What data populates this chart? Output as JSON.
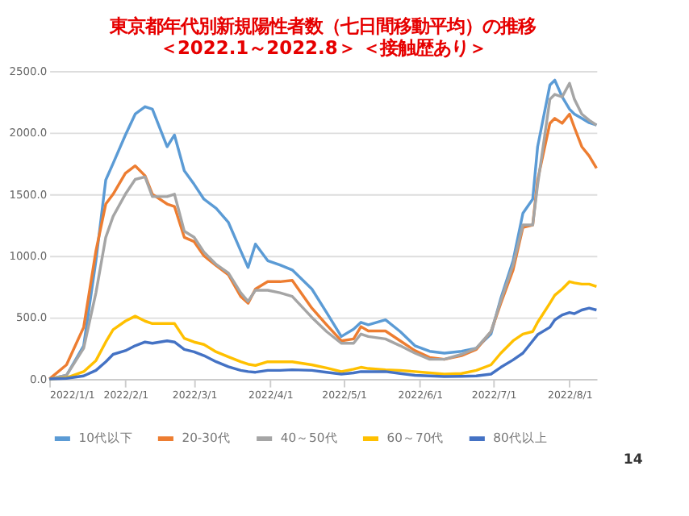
{
  "chart_data": {
    "type": "line",
    "title": [
      "東京都年代別新規陽性者数（七日間移動平均）の推移",
      "＜2022.1～2022.8＞ ＜接触歴あり＞"
    ],
    "x": [
      "2022-01-01",
      "2022-01-08",
      "2022-01-15",
      "2022-01-20",
      "2022-01-24",
      "2022-01-27",
      "2022-02-01",
      "2022-02-05",
      "2022-02-09",
      "2022-02-12",
      "2022-02-18",
      "2022-02-21",
      "2022-02-25",
      "2022-03-01",
      "2022-03-05",
      "2022-03-10",
      "2022-03-15",
      "2022-03-20",
      "2022-03-23",
      "2022-03-26",
      "2022-03-31",
      "2022-04-05",
      "2022-04-10",
      "2022-04-18",
      "2022-04-24",
      "2022-04-30",
      "2022-05-05",
      "2022-05-08",
      "2022-05-11",
      "2022-05-18",
      "2022-05-24",
      "2022-05-30",
      "2022-06-05",
      "2022-06-11",
      "2022-06-18",
      "2022-06-24",
      "2022-06-30",
      "2022-07-04",
      "2022-07-09",
      "2022-07-13",
      "2022-07-17",
      "2022-07-19",
      "2022-07-24",
      "2022-07-26",
      "2022-07-29",
      "2022-08-01",
      "2022-08-03",
      "2022-08-06",
      "2022-08-09",
      "2022-08-12"
    ],
    "series": [
      {
        "name": "10代以下",
        "color": "#5b9bd5",
        "values": [
          0,
          30,
          270,
          960,
          1615,
          1750,
          1980,
          2150,
          2210,
          2190,
          1885,
          1980,
          1690,
          1580,
          1460,
          1385,
          1270,
          1040,
          905,
          1095,
          960,
          925,
          885,
          730,
          540,
          345,
          405,
          460,
          440,
          480,
          385,
          270,
          225,
          210,
          225,
          250,
          365,
          655,
          960,
          1345,
          1460,
          1885,
          2385,
          2425,
          2290,
          2190,
          2150,
          2115,
          2080,
          2060
        ]
      },
      {
        "name": "20-30代",
        "color": "#ed7d31",
        "values": [
          0,
          115,
          420,
          1040,
          1420,
          1500,
          1670,
          1730,
          1650,
          1500,
          1420,
          1400,
          1150,
          1115,
          1000,
          920,
          845,
          670,
          615,
          730,
          790,
          790,
          800,
          575,
          440,
          310,
          325,
          425,
          390,
          390,
          310,
          230,
          175,
          160,
          190,
          240,
          385,
          615,
          885,
          1230,
          1250,
          1615,
          2075,
          2115,
          2075,
          2150,
          2040,
          1885,
          1810,
          1710
        ]
      },
      {
        "name": "40～50代",
        "color": "#a5a5a5",
        "values": [
          0,
          30,
          250,
          700,
          1150,
          1320,
          1500,
          1620,
          1640,
          1480,
          1480,
          1500,
          1200,
          1150,
          1030,
          930,
          860,
          700,
          630,
          720,
          720,
          700,
          670,
          500,
          385,
          290,
          290,
          365,
          345,
          325,
          270,
          210,
          160,
          160,
          200,
          250,
          385,
          635,
          925,
          1250,
          1250,
          1575,
          2270,
          2310,
          2290,
          2400,
          2270,
          2150,
          2100,
          2060
        ]
      },
      {
        "name": "60～70代",
        "color": "#ffc000",
        "values": [
          0,
          10,
          60,
          150,
          300,
          400,
          470,
          510,
          470,
          450,
          450,
          450,
          330,
          300,
          280,
          220,
          180,
          140,
          120,
          110,
          140,
          140,
          140,
          115,
          90,
          60,
          80,
          95,
          85,
          75,
          70,
          60,
          50,
          40,
          45,
          70,
          115,
          210,
          310,
          365,
          385,
          460,
          615,
          680,
          730,
          790,
          780,
          770,
          770,
          750
        ]
      },
      {
        "name": "80代以上",
        "color": "#4472c4",
        "values": [
          0,
          5,
          25,
          70,
          140,
          200,
          230,
          270,
          300,
          290,
          310,
          300,
          240,
          220,
          190,
          140,
          100,
          70,
          60,
          55,
          70,
          70,
          75,
          70,
          55,
          40,
          50,
          60,
          60,
          60,
          45,
          30,
          25,
          20,
          22,
          25,
          40,
          95,
          155,
          210,
          310,
          360,
          420,
          480,
          520,
          540,
          530,
          560,
          575,
          560
        ]
      }
    ],
    "xlim": [
      "2022-01-01",
      "2022-08-12"
    ],
    "xticks": [
      {
        "value": "2022-01-01",
        "label": "2022/1/1"
      },
      {
        "value": "2022-02-01",
        "label": "2022/2/1"
      },
      {
        "value": "2022-03-01",
        "label": "2022/3/1"
      },
      {
        "value": "2022-04-01",
        "label": "2022/4/1"
      },
      {
        "value": "2022-05-01",
        "label": "2022/5/1"
      },
      {
        "value": "2022-06-01",
        "label": "2022/6/1"
      },
      {
        "value": "2022-07-01",
        "label": "2022/7/1"
      },
      {
        "value": "2022-08-01",
        "label": "2022/8/1"
      }
    ],
    "ylim": [
      0,
      2500
    ],
    "yticks": [
      {
        "value": 0,
        "label": "0.0"
      },
      {
        "value": 500,
        "label": "500.0"
      },
      {
        "value": 1000,
        "label": "1000.0"
      },
      {
        "value": 1500,
        "label": "1500.0"
      },
      {
        "value": 2000,
        "label": "2000.0"
      },
      {
        "value": 2500,
        "label": "2500.0"
      }
    ],
    "grid": "y",
    "legend": "bottom",
    "marker": "none",
    "line_style": "solid",
    "annotations": [
      "14"
    ]
  }
}
